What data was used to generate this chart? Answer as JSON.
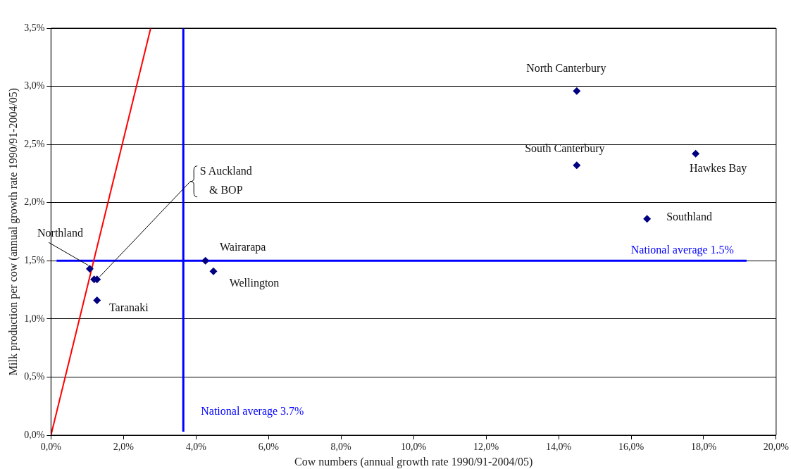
{
  "chart_data": {
    "type": "scatter",
    "xlabel": "Cow numbers (annual growth rate 1990/91-2004/05)",
    "ylabel": "Milk production per cow (annual growth rate 1990/91-2004/05)",
    "xlim": [
      0,
      20
    ],
    "ylim": [
      0,
      3.5
    ],
    "xticks": [
      {
        "value": 0,
        "label": "0,0%"
      },
      {
        "value": 2,
        "label": "2,0%"
      },
      {
        "value": 4,
        "label": "4,0%"
      },
      {
        "value": 6,
        "label": "6,0%"
      },
      {
        "value": 8,
        "label": "8,0%"
      },
      {
        "value": 10,
        "label": "10,0%"
      },
      {
        "value": 12,
        "label": "12,0%"
      },
      {
        "value": 14,
        "label": "14,0%"
      },
      {
        "value": 16,
        "label": "16,0%"
      },
      {
        "value": 18,
        "label": "18,0%"
      },
      {
        "value": 20,
        "label": "20,0%"
      }
    ],
    "yticks": [
      {
        "value": 0,
        "label": "0,0%"
      },
      {
        "value": 0.5,
        "label": "0,5%"
      },
      {
        "value": 1,
        "label": "1,0%"
      },
      {
        "value": 1.5,
        "label": "1,5%"
      },
      {
        "value": 2,
        "label": "2,0%"
      },
      {
        "value": 2.5,
        "label": "2,5%"
      },
      {
        "value": 3,
        "label": "3,0%"
      },
      {
        "value": 3.5,
        "label": "3,5%"
      }
    ],
    "grid": "y",
    "legend": false,
    "marker": "diamond",
    "series": [
      {
        "color": "#000080",
        "x": [
          14.5,
          14.5,
          17.78,
          16.44,
          4.26,
          4.48,
          1.07,
          1.19,
          1.27,
          1.27
        ],
        "values": [
          2.96,
          2.32,
          2.42,
          1.86,
          1.5,
          1.41,
          1.43,
          1.34,
          1.34,
          1.16
        ]
      },
      {
        "type": "line",
        "color": "#ff0000",
        "marker": "none",
        "x": [
          0,
          2.75
        ],
        "values": [
          0,
          3.5
        ]
      }
    ],
    "ref_lines": [
      {
        "axis": "x",
        "value": 3.65,
        "label": "National average 3.7%",
        "color": "#0000ff"
      },
      {
        "axis": "y",
        "value": 1.5,
        "label": "National average 1.5%",
        "color": "#0000ff"
      }
    ],
    "annotations": [
      {
        "text": "North Canterbury",
        "x": 14.5,
        "y": 2.96
      },
      {
        "text": "South Canterbury",
        "x": 14.5,
        "y": 2.32
      },
      {
        "text": "Hawkes Bay",
        "x": 17.78,
        "y": 2.42
      },
      {
        "text": "Southland",
        "x": 16.44,
        "y": 1.86
      },
      {
        "text": "Wairarapa",
        "x": 4.26,
        "y": 1.5
      },
      {
        "text": "Wellington",
        "x": 4.48,
        "y": 1.41
      },
      {
        "text": "Northland",
        "x": 1.07,
        "y": 1.43
      },
      {
        "text": "Taranaki",
        "x": 1.27,
        "y": 1.16
      },
      {
        "text": "S Auckland\n& BOP",
        "x": 1.27,
        "y": 1.34
      }
    ]
  }
}
